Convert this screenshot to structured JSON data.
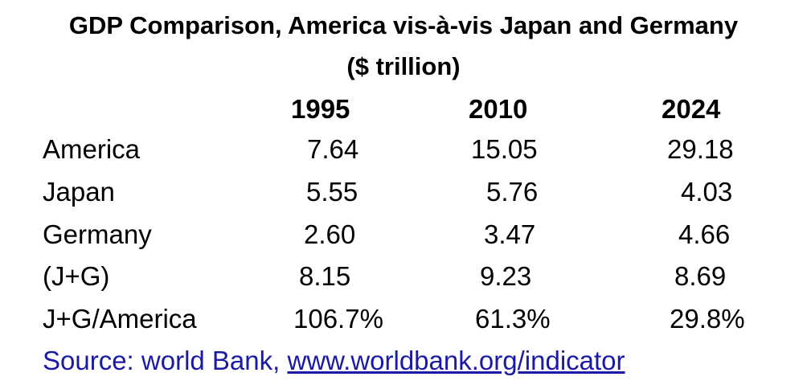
{
  "title": {
    "line1": "GDP Comparison, America vis-à-vis Japan and Germany",
    "line2": "($ trillion)"
  },
  "columns": [
    "1995",
    "2010",
    "2024"
  ],
  "rows": [
    {
      "label": "America",
      "values": [
        "7.64",
        "15.05",
        "29.18"
      ]
    },
    {
      "label": "Japan",
      "values": [
        "5.55",
        "5.76",
        "4.03"
      ]
    },
    {
      "label": "Germany",
      "values": [
        "2.60",
        "3.47",
        "4.66"
      ]
    },
    {
      "label": "(J+G)",
      "values": [
        "8.15",
        "9.23",
        "8.69"
      ]
    },
    {
      "label": "J+G/America",
      "values": [
        "106.7%",
        "61.3%",
        "29.8%"
      ]
    }
  ],
  "source": {
    "prefix": "Source: world Bank, ",
    "link": "www.worldbank.org/indicator"
  },
  "colors": {
    "text": "#000000",
    "source": "#1a1aa6"
  }
}
